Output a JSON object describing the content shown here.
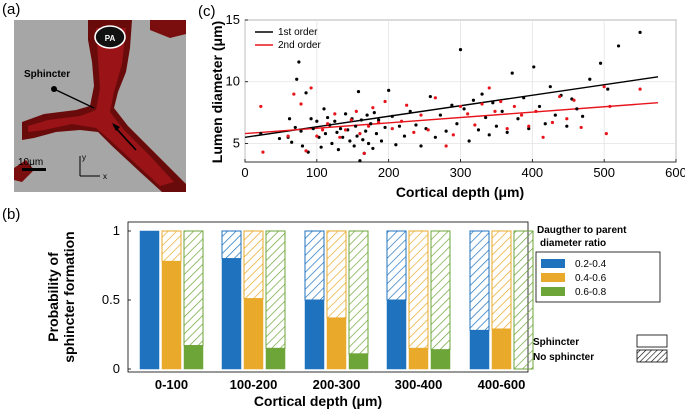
{
  "panel_labels": {
    "a": "(a)",
    "b": "(b)",
    "c": "(c)"
  },
  "image_a": {
    "pa_label": "PA",
    "sphincter_label": "Sphincter",
    "scale_label": "10μm",
    "axis_y": "y",
    "axis_x": "x"
  },
  "colors": {
    "first_order": "#000000",
    "second_order": "#e8141b",
    "ratio_0_2_0_4": "#1f72be",
    "ratio_0_4_0_6": "#e9a92a",
    "ratio_0_6_0_8": "#6ea538"
  },
  "chart_data": [
    {
      "id": "c",
      "type": "scatter",
      "xlabel": "Cortical depth (μm)",
      "ylabel": "Lumen diameter (μm)",
      "xlim": [
        0,
        600
      ],
      "ylim": [
        3.5,
        15
      ],
      "xticks": [
        0,
        100,
        200,
        300,
        400,
        500,
        600
      ],
      "yticks": [
        5,
        10,
        15
      ],
      "grid": true,
      "legend_position": "top-left",
      "series": [
        {
          "name": "1st order",
          "color_key": "first_order",
          "fit": [
            [
              0,
              5.5
            ],
            [
              575,
              10.4
            ]
          ],
          "points": [
            [
              22,
              5.8
            ],
            [
              48,
              5.4
            ],
            [
              60,
              5.5
            ],
            [
              62,
              7.0
            ],
            [
              65,
              5.1
            ],
            [
              70,
              6.3
            ],
            [
              72,
              10.2
            ],
            [
              75,
              11.6
            ],
            [
              78,
              6.0
            ],
            [
              80,
              4.8
            ],
            [
              85,
              9.1
            ],
            [
              88,
              4.3
            ],
            [
              92,
              7.0
            ],
            [
              95,
              6.2
            ],
            [
              100,
              6.8
            ],
            [
              103,
              5.5
            ],
            [
              106,
              4.7
            ],
            [
              110,
              7.8
            ],
            [
              112,
              5.8
            ],
            [
              115,
              7.1
            ],
            [
              118,
              6.5
            ],
            [
              121,
              5.0
            ],
            [
              125,
              6.8
            ],
            [
              128,
              5.9
            ],
            [
              130,
              4.5
            ],
            [
              133,
              6.2
            ],
            [
              136,
              5.5
            ],
            [
              140,
              7.4
            ],
            [
              143,
              6.1
            ],
            [
              146,
              5.2
            ],
            [
              149,
              7.0
            ],
            [
              152,
              4.8
            ],
            [
              154,
              6.4
            ],
            [
              156,
              5.6
            ],
            [
              158,
              9.2
            ],
            [
              160,
              3.6
            ],
            [
              162,
              6.9
            ],
            [
              164,
              5.3
            ],
            [
              166,
              4.2
            ],
            [
              168,
              6.0
            ],
            [
              170,
              7.3
            ],
            [
              172,
              5.0
            ],
            [
              175,
              6.6
            ],
            [
              178,
              4.6
            ],
            [
              180,
              7.5
            ],
            [
              183,
              5.8
            ],
            [
              186,
              6.9
            ],
            [
              190,
              5.2
            ],
            [
              195,
              6.3
            ],
            [
              200,
              9.3
            ],
            [
              205,
              7.2
            ],
            [
              210,
              4.9
            ],
            [
              215,
              6.4
            ],
            [
              222,
              5.6
            ],
            [
              230,
              7.6
            ],
            [
              238,
              6.5
            ],
            [
              245,
              4.8
            ],
            [
              252,
              6.2
            ],
            [
              258,
              8.8
            ],
            [
              265,
              5.5
            ],
            [
              272,
              7.3
            ],
            [
              280,
              6.0
            ],
            [
              288,
              8.1
            ],
            [
              295,
              6.6
            ],
            [
              300,
              12.6
            ],
            [
              305,
              7.8
            ],
            [
              312,
              5.2
            ],
            [
              318,
              8.5
            ],
            [
              325,
              6.1
            ],
            [
              330,
              9.0
            ],
            [
              335,
              7.1
            ],
            [
              340,
              5.7
            ],
            [
              345,
              8.3
            ],
            [
              350,
              6.4
            ],
            [
              358,
              7.6
            ],
            [
              365,
              5.9
            ],
            [
              372,
              10.7
            ],
            [
              380,
              7.0
            ],
            [
              388,
              8.7
            ],
            [
              395,
              6.2
            ],
            [
              402,
              11.2
            ],
            [
              410,
              8.0
            ],
            [
              418,
              6.6
            ],
            [
              425,
              9.6
            ],
            [
              432,
              7.3
            ],
            [
              440,
              8.9
            ],
            [
              448,
              6.4
            ],
            [
              455,
              8.6
            ],
            [
              462,
              7.8
            ],
            [
              470,
              7.2
            ],
            [
              480,
              10.2
            ],
            [
              495,
              11.5
            ],
            [
              505,
              9.4
            ],
            [
              520,
              12.9
            ],
            [
              550,
              14.0
            ]
          ]
        },
        {
          "name": "2nd order",
          "color_key": "second_order",
          "fit": [
            [
              0,
              5.8
            ],
            [
              575,
              8.3
            ]
          ],
          "points": [
            [
              22,
              8.0
            ],
            [
              25,
              4.3
            ],
            [
              60,
              5.6
            ],
            [
              68,
              9.0
            ],
            [
              78,
              8.2
            ],
            [
              85,
              4.4
            ],
            [
              92,
              9.5
            ],
            [
              100,
              5.6
            ],
            [
              108,
              6.1
            ],
            [
              115,
              6.6
            ],
            [
              125,
              7.4
            ],
            [
              132,
              5.5
            ],
            [
              140,
              6.1
            ],
            [
              148,
              6.9
            ],
            [
              155,
              7.6
            ],
            [
              160,
              5.8
            ],
            [
              166,
              4.2
            ],
            [
              172,
              6.4
            ],
            [
              178,
              7.9
            ],
            [
              186,
              6.7
            ],
            [
              195,
              8.4
            ],
            [
              205,
              6.2
            ],
            [
              218,
              6.8
            ],
            [
              225,
              8.1
            ],
            [
              235,
              5.9
            ],
            [
              245,
              7.3
            ],
            [
              255,
              6.1
            ],
            [
              265,
              8.7
            ],
            [
              280,
              4.8
            ],
            [
              290,
              5.7
            ],
            [
              300,
              8.0
            ],
            [
              310,
              7.4
            ],
            [
              320,
              6.5
            ],
            [
              330,
              8.2
            ],
            [
              340,
              9.5
            ],
            [
              348,
              7.6
            ],
            [
              356,
              8.4
            ],
            [
              365,
              6.2
            ],
            [
              375,
              8.0
            ],
            [
              385,
              7.3
            ],
            [
              395,
              6.4
            ],
            [
              405,
              7.6
            ],
            [
              415,
              5.5
            ],
            [
              428,
              6.7
            ],
            [
              438,
              8.8
            ],
            [
              448,
              7.0
            ],
            [
              458,
              8.5
            ],
            [
              468,
              6.3
            ],
            [
              500,
              9.6
            ],
            [
              503,
              5.8
            ],
            [
              508,
              8.0
            ],
            [
              550,
              9.4
            ]
          ]
        }
      ]
    },
    {
      "id": "b",
      "type": "bar",
      "xlabel": "Cortical depth (μm)",
      "ylabel_lines": [
        "Probability of",
        "sphincter formation"
      ],
      "ylim": [
        0,
        1
      ],
      "yticks": [
        "0",
        "0.5",
        "1"
      ],
      "grid": false,
      "categories": [
        "0-100",
        "100-200",
        "200-300",
        "300-400",
        "400-600"
      ],
      "legend_title_lines": [
        "Daugther to parent",
        "diameter ratio"
      ],
      "series": [
        {
          "name": "0.2-0.4",
          "color_key": "ratio_0_2_0_4",
          "values": [
            1.0,
            0.8,
            0.5,
            0.5,
            0.28
          ]
        },
        {
          "name": "0.4-0.6",
          "color_key": "ratio_0_4_0_6",
          "values": [
            0.78,
            0.51,
            0.37,
            0.15,
            0.29
          ]
        },
        {
          "name": "0.6-0.8",
          "color_key": "ratio_0_6_0_8",
          "values": [
            0.17,
            0.15,
            0.11,
            0.14,
            0.0
          ]
        }
      ],
      "style_legend": [
        {
          "name": "Sphincter",
          "pattern": "solid"
        },
        {
          "name": "No sphincter",
          "pattern": "hatched"
        }
      ]
    }
  ]
}
